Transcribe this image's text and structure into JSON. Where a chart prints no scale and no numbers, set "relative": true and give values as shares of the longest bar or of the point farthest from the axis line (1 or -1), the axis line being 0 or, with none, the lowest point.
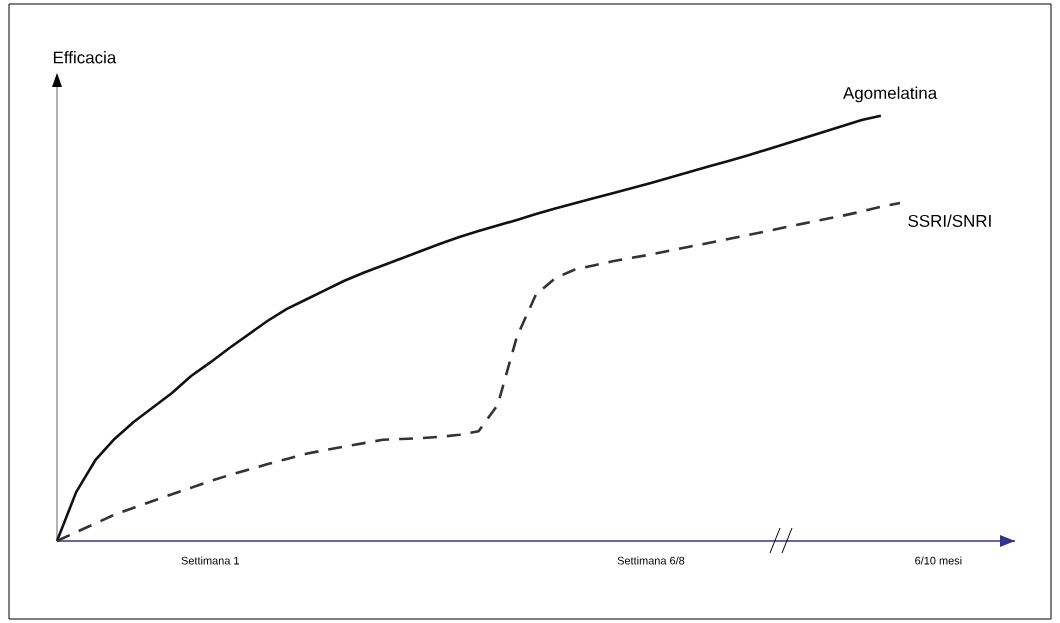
{
  "chart_data": {
    "type": "line",
    "relative": true,
    "ylabel": "Efficacia",
    "legend": false,
    "marker": "none",
    "categories": [
      null,
      null,
      null,
      null,
      null,
      null,
      null,
      null,
      "Settimana 1",
      null,
      null,
      null,
      null,
      null,
      null,
      null,
      null,
      null,
      null,
      null,
      null,
      null,
      null,
      null,
      null,
      null,
      null,
      null,
      null,
      null,
      null,
      "Settimana 6/8",
      null,
      null,
      null,
      null,
      null,
      null,
      null,
      null,
      null,
      null,
      null,
      null,
      null,
      null,
      "6/10 mesi"
    ],
    "series": [
      {
        "name": "Agomelatina",
        "color": "#111111",
        "line_style": "solid",
        "values": [
          0,
          0.115,
          0.19,
          0.24,
          0.28,
          0.314,
          0.348,
          0.388,
          0.42,
          0.454,
          0.486,
          0.518,
          0.546,
          0.568,
          0.59,
          0.612,
          0.631,
          0.648,
          0.665,
          0.682,
          0.699,
          0.715,
          0.729,
          0.742,
          0.755,
          0.769,
          0.782,
          0.794,
          0.806,
          0.818,
          0.83,
          0.842,
          0.855,
          0.868,
          0.881,
          0.893,
          0.906,
          0.92,
          0.934,
          0.948,
          0.962,
          0.976,
          0.99,
          1.0,
          null,
          null,
          null
        ]
      },
      {
        "name": "SSRI/SNRI",
        "color": "#333333",
        "line_style": "dashed",
        "values": [
          0,
          0.021,
          0.041,
          0.062,
          0.078,
          0.094,
          0.11,
          0.125,
          0.141,
          0.155,
          0.168,
          0.181,
          0.193,
          0.205,
          0.214,
          0.222,
          0.23,
          0.238,
          0.24,
          0.242,
          0.245,
          0.25,
          0.258,
          0.32,
          0.48,
          0.58,
          0.618,
          0.638,
          0.648,
          0.658,
          0.666,
          0.674,
          0.683,
          0.692,
          0.701,
          0.71,
          0.719,
          0.728,
          0.738,
          0.747,
          0.756,
          0.765,
          0.775,
          0.786,
          0.795,
          null,
          null
        ]
      }
    ]
  }
}
